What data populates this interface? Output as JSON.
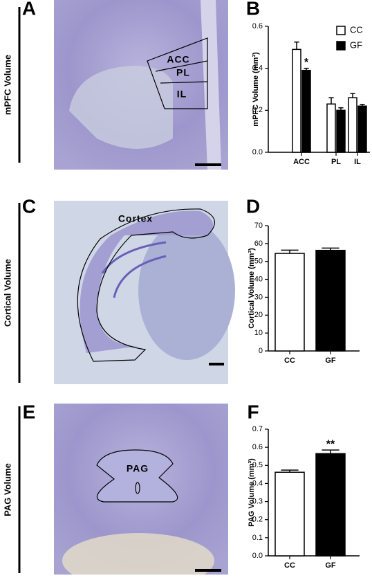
{
  "figure": {
    "panel_labels": [
      "A",
      "B",
      "C",
      "D",
      "E",
      "F"
    ],
    "row_labels": [
      "mPFC Volume",
      "Cortical Volume",
      "PAG Volume"
    ],
    "image_labels": {
      "mpfc": [
        "ACC",
        "PL",
        "IL"
      ],
      "cortex": [
        "Cortex"
      ],
      "pag": [
        "PAG"
      ]
    }
  },
  "chart_data": [
    {
      "type": "bar",
      "y_label": "mPFC Volume (mm³)",
      "categories": [
        "ACC",
        "PL",
        "IL"
      ],
      "series": [
        {
          "name": "CC",
          "color": "#ffffff",
          "values": [
            0.49,
            0.23,
            0.26
          ],
          "errors": [
            0.035,
            0.03,
            0.02
          ]
        },
        {
          "name": "GF",
          "color": "#000000",
          "values": [
            0.39,
            0.2,
            0.22
          ],
          "errors": [
            0.01,
            0.012,
            0.008
          ]
        }
      ],
      "ylim": [
        0,
        0.6
      ],
      "yticks": [
        {
          "value": 0,
          "label": "0.0"
        },
        0.2,
        0.4,
        0.6
      ],
      "annotations": [
        "*"
      ],
      "legend": "top-right"
    },
    {
      "type": "bar",
      "y_label": "Cortical Volume (mm³)",
      "categories": [
        "CC",
        "GF"
      ],
      "values": [
        54.5,
        56.2
      ],
      "errors": [
        1.8,
        1.3
      ],
      "colors": [
        "#ffffff",
        "#000000"
      ],
      "ylim": [
        0,
        70
      ],
      "yticks": [
        0,
        10,
        20,
        30,
        40,
        50,
        60,
        70
      ]
    },
    {
      "type": "bar",
      "y_label": "PAG Volume (mm³)",
      "categories": [
        "CC",
        "GF"
      ],
      "values": [
        0.462,
        0.565
      ],
      "errors": [
        0.012,
        0.02
      ],
      "colors": [
        "#ffffff",
        "#000000"
      ],
      "ylim": [
        0,
        0.7
      ],
      "yticks": [
        {
          "value": 0,
          "label": "0.0"
        },
        0.1,
        0.2,
        0.3,
        0.4,
        0.5,
        0.6,
        0.7
      ],
      "annotations": [
        "**"
      ]
    }
  ]
}
